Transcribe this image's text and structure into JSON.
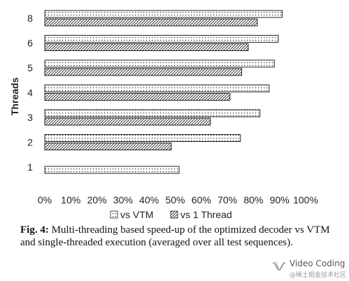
{
  "chart_data": {
    "type": "bar",
    "orientation": "horizontal",
    "title": "",
    "xlabel": "",
    "ylabel": "Threads",
    "categories": [
      "8",
      "6",
      "5",
      "4",
      "3",
      "2",
      "1"
    ],
    "series": [
      {
        "name": "vs VTM",
        "values": [
          91,
          89.5,
          88,
          86,
          82.5,
          75,
          51.5
        ],
        "pattern": "dots"
      },
      {
        "name": "vs 1 Thread",
        "values": [
          81.5,
          78,
          75.5,
          71,
          63.5,
          48.5,
          null
        ],
        "pattern": "hatch"
      }
    ],
    "xlim": [
      0,
      100
    ],
    "xticks": [
      "0%",
      "10%",
      "20%",
      "30%",
      "40%",
      "50%",
      "60%",
      "70%",
      "80%",
      "90%",
      "100%"
    ],
    "grid": false,
    "legend_position": "bottom",
    "bar_stroke_color": "#222222"
  },
  "caption": {
    "label": "Fig. 4:",
    "text": " Multi-threading based speed-up of the optimized decoder vs VTM and single-threaded execution (averaged over all test sequences)."
  },
  "watermark": {
    "title": "Video Coding",
    "subtitle": "@稀土掘金技术社区",
    "icon": "wechat-channel-icon"
  }
}
